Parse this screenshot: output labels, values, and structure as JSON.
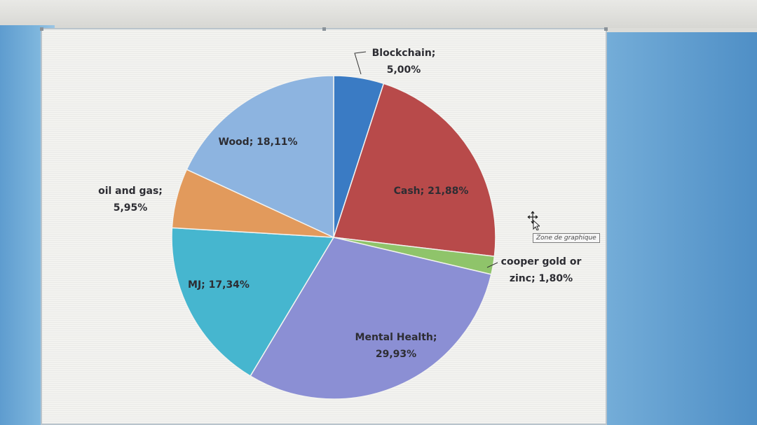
{
  "tooltip": {
    "text": "Zone de graphique"
  },
  "chart_data": {
    "type": "pie",
    "title": "",
    "slices": [
      {
        "label": "Blockchain",
        "value": 5.0,
        "value_label": "5,00%",
        "color": "#3a7bc4"
      },
      {
        "label": "Cash",
        "value": 21.88,
        "value_label": "21,88%",
        "color": "#b84a4a"
      },
      {
        "label": "cooper gold or zinc",
        "value": 1.8,
        "value_label": "1,80%",
        "color": "#8fc46a"
      },
      {
        "label": "Mental Health",
        "value": 29.93,
        "value_label": "29,93%",
        "color": "#8b8fd4"
      },
      {
        "label": "MJ",
        "value": 17.34,
        "value_label": "17,34%",
        "color": "#46b6cf"
      },
      {
        "label": "oil and gas",
        "value": 5.95,
        "value_label": "5,95%",
        "color": "#e29a5c"
      },
      {
        "label": "Wood",
        "value": 18.11,
        "value_label": "18,11%",
        "color": "#8db4e0"
      }
    ],
    "start_angle": "12 o'clock",
    "direction": "clockwise",
    "legend": "none",
    "data_labels": "category; percent"
  }
}
